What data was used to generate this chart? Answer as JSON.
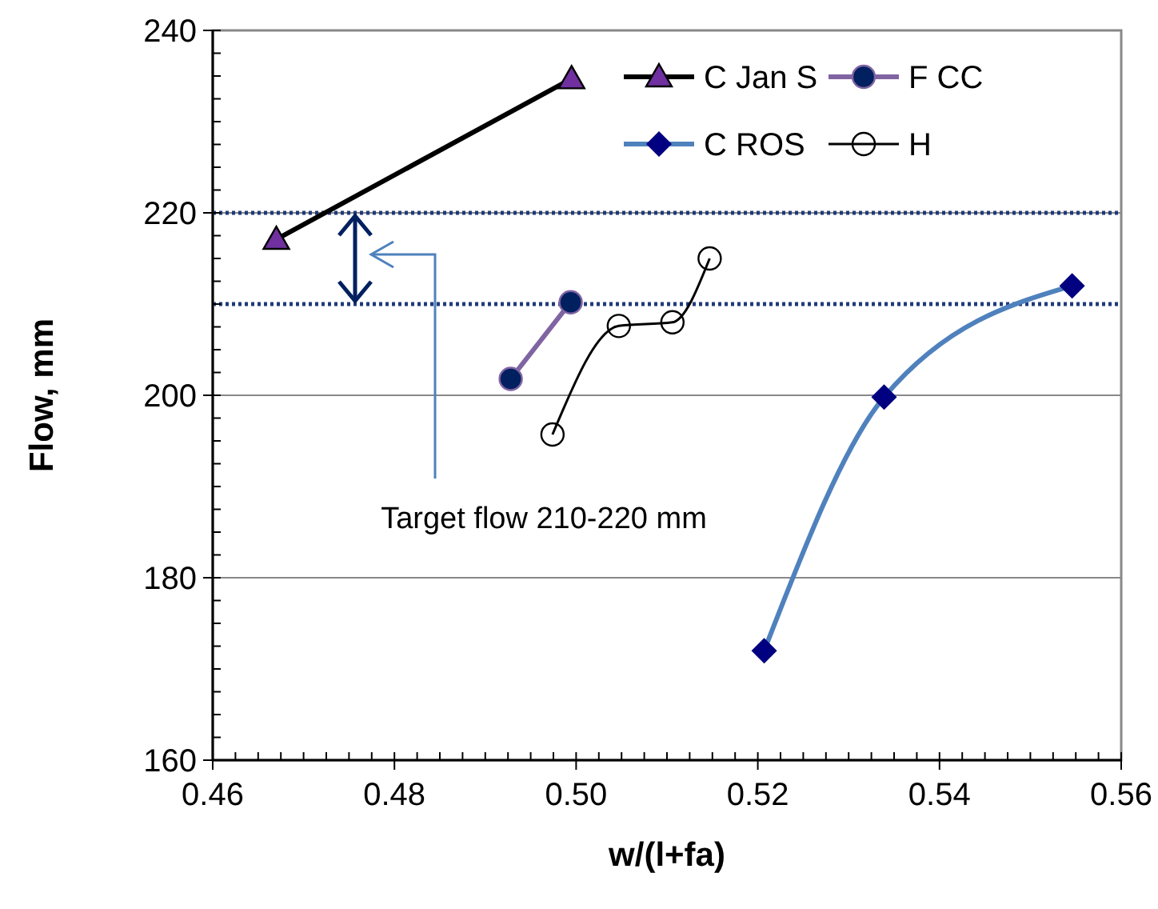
{
  "chart_data": {
    "type": "line",
    "xlabel": "w/(l+fa)",
    "ylabel": "Flow, mm",
    "xlim": [
      0.46,
      0.56
    ],
    "xticks": [
      {
        "value": 0.46,
        "label": "0.46"
      },
      {
        "value": 0.48,
        "label": "0.48"
      },
      {
        "value": 0.5,
        "label": "0.50"
      },
      {
        "value": 0.52,
        "label": "0.52"
      },
      {
        "value": 0.54,
        "label": "0.54"
      },
      {
        "value": 0.56,
        "label": "0.56"
      }
    ],
    "ylim": [
      160,
      240
    ],
    "yticks": [
      160,
      180,
      200,
      220,
      240
    ],
    "grid": "y",
    "legend": "top right",
    "series": [
      {
        "name": "C Jan S",
        "color": "#000000",
        "marker": "triangle",
        "x": [
          0.467,
          0.4995
        ],
        "values": [
          217.1,
          234.7
        ]
      },
      {
        "name": "F CC",
        "color": "#8064a2",
        "marker": "circle",
        "x": [
          0.4928,
          0.4994
        ],
        "values": [
          201.8,
          210.2
        ]
      },
      {
        "name": "C ROS",
        "color": "#4f81bd",
        "marker": "diamond",
        "x": [
          0.5207,
          0.5339,
          0.5546
        ],
        "values": [
          172.0,
          199.8,
          212.0
        ]
      },
      {
        "name": "H",
        "color": "#000000",
        "marker": "circle",
        "x": [
          0.4974,
          0.5047,
          0.5106,
          0.5147
        ],
        "values": [
          195.7,
          207.6,
          208.0,
          215.0
        ]
      }
    ],
    "ref_lines": [
      {
        "axis": "y",
        "value": 220,
        "color": "#1f3a7a",
        "line_style": "dotted"
      },
      {
        "axis": "y",
        "value": 210,
        "color": "#1f3a7a",
        "line_style": "dotted"
      }
    ],
    "annotations": [
      "Target flow 210-220 mm"
    ]
  }
}
